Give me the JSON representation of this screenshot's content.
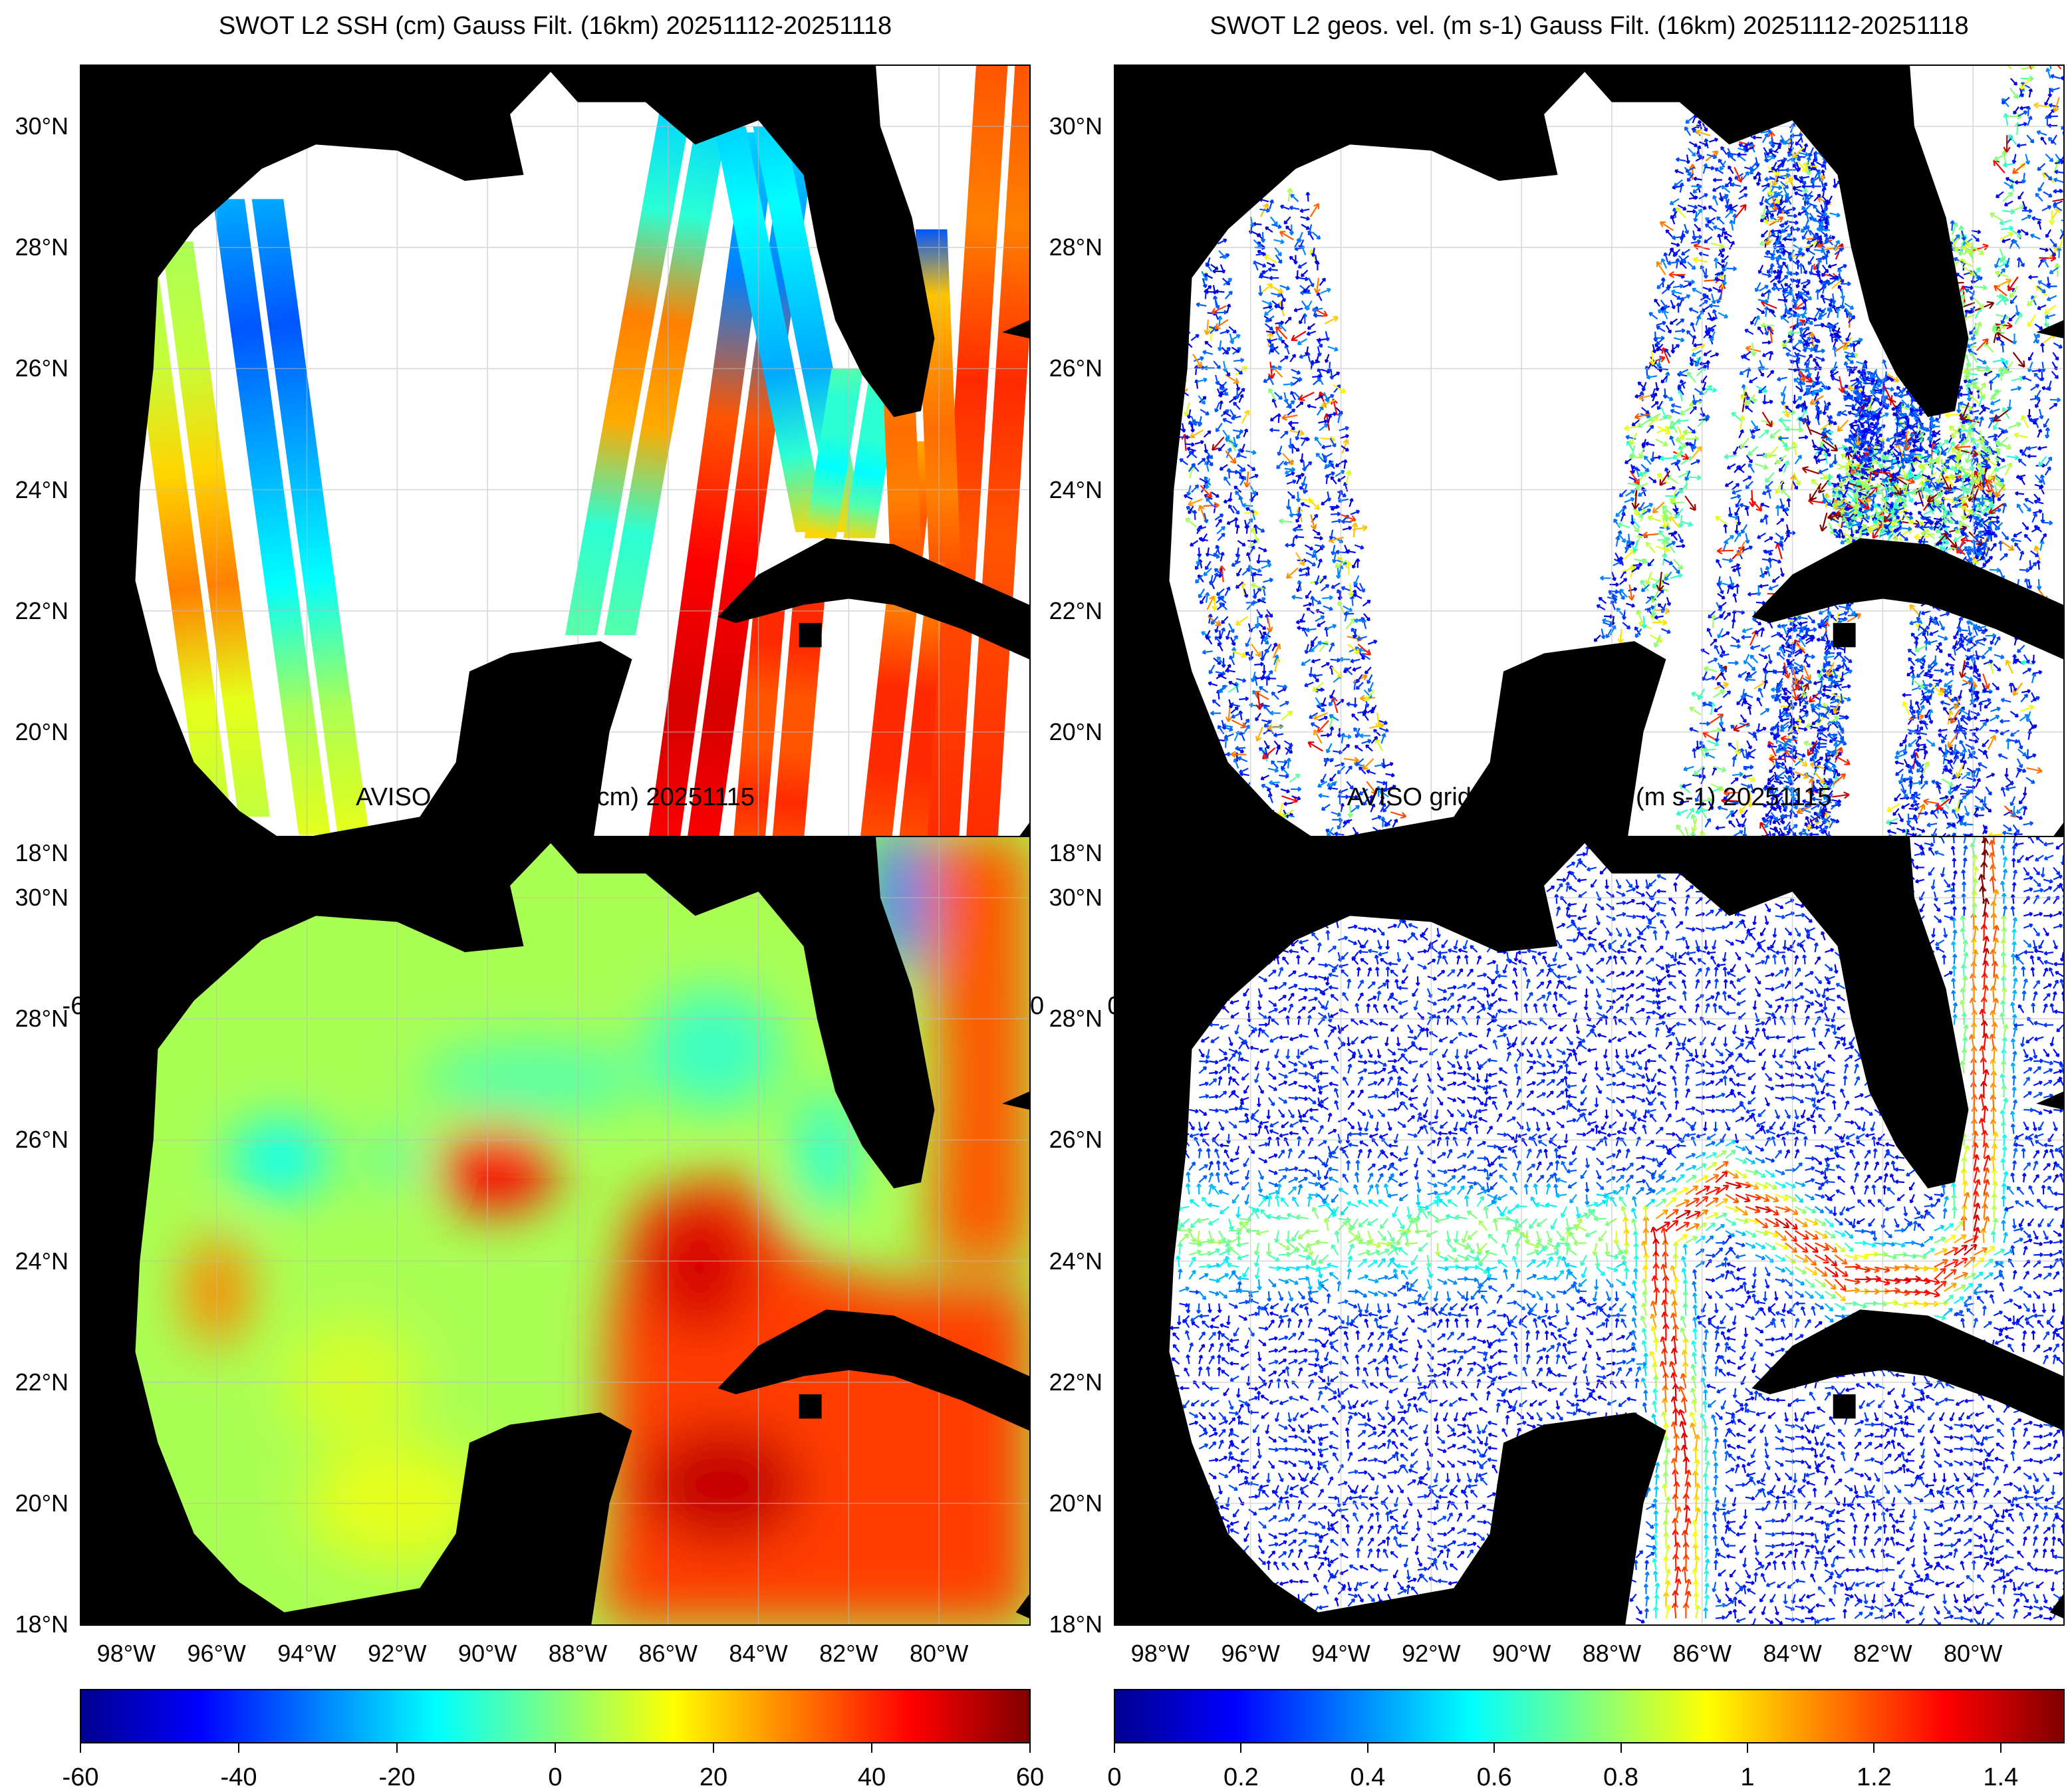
{
  "colormap": [
    "#00008f",
    "#0000ff",
    "#00ffff",
    "#ffff00",
    "#ff0000",
    "#800000"
  ],
  "land_color": "#000000",
  "ocean_no_data_color": "#ffffff",
  "lat_ticks": [
    "30°N",
    "28°N",
    "26°N",
    "24°N",
    "22°N",
    "20°N",
    "18°N"
  ],
  "lon_ticks": [
    "98°W",
    "96°W",
    "94°W",
    "92°W",
    "90°W",
    "88°W",
    "86°W",
    "84°W",
    "82°W",
    "80°W"
  ],
  "map_extent": {
    "lon": [
      -99,
      -78
    ],
    "lat": [
      18,
      31
    ]
  },
  "panels": [
    {
      "title": "SWOT L2 SSH (cm) Gauss Filt. (16km) 20251112-20251118",
      "kind": "swot-ssh",
      "colorbar": {
        "ticks": [
          "-60",
          "-40",
          "-20",
          "0",
          "20",
          "40",
          "60"
        ],
        "range": [
          -60,
          60
        ]
      }
    },
    {
      "title": "SWOT L2 geos. vel. (m s-1) Gauss Filt. (16km) 20251112-20251118",
      "kind": "swot-vel",
      "colorbar": {
        "ticks": [
          "0",
          "0.2",
          "0.4",
          "0.6",
          "0.8",
          "1",
          "1.2",
          "1.4"
        ],
        "range": [
          0,
          1.5
        ]
      }
    },
    {
      "title": "AVISO gridded SSH (cm) 20251115",
      "kind": "aviso-ssh",
      "colorbar": {
        "ticks": [
          "-60",
          "-40",
          "-20",
          "0",
          "20",
          "40",
          "60"
        ],
        "range": [
          -60,
          60
        ]
      }
    },
    {
      "title": "AVISO gridded geos. vel. (m s-1)  20251115",
      "kind": "aviso-vel",
      "colorbar": {
        "ticks": [
          "0",
          "0.2",
          "0.4",
          "0.6",
          "0.8",
          "1",
          "1.2",
          "1.4"
        ],
        "range": [
          0,
          1.5
        ]
      }
    }
  ]
}
